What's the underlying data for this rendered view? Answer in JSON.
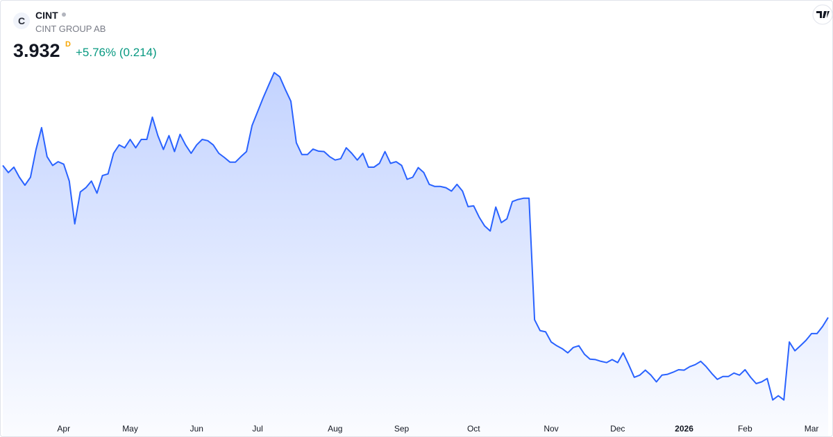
{
  "header": {
    "symbol": "CINT",
    "company": "CINT GROUP AB",
    "logo": "C",
    "price": 3.932,
    "interval": "D",
    "change": "+5.76% (0.214)"
  },
  "chart_data": {
    "type": "area",
    "color": "#2962ff",
    "categories": [
      null,
      null,
      null,
      null,
      null,
      null,
      null,
      null,
      null,
      null,
      null,
      "Apr",
      null,
      null,
      null,
      null,
      null,
      null,
      null,
      null,
      null,
      null,
      null,
      "May",
      null,
      null,
      null,
      null,
      null,
      null,
      null,
      null,
      null,
      null,
      null,
      "Jun",
      null,
      null,
      null,
      null,
      null,
      null,
      null,
      null,
      null,
      null,
      "Jul",
      null,
      null,
      null,
      null,
      null,
      null,
      null,
      null,
      null,
      null,
      null,
      null,
      null,
      "Aug",
      null,
      null,
      null,
      null,
      null,
      null,
      null,
      null,
      null,
      null,
      null,
      "Sep",
      null,
      null,
      null,
      null,
      null,
      null,
      null,
      null,
      null,
      null,
      null,
      null,
      "Oct",
      null,
      null,
      null,
      null,
      null,
      null,
      null,
      null,
      null,
      null,
      null,
      null,
      null,
      "Nov",
      null,
      null,
      null,
      null,
      null,
      null,
      null,
      null,
      null,
      null,
      null,
      "Dec",
      null,
      null,
      null,
      null,
      null,
      null,
      null,
      null,
      null,
      null,
      null,
      "2026",
      null,
      null,
      null,
      null,
      null,
      null,
      null,
      null,
      null,
      null,
      "Feb",
      null,
      null,
      null,
      null,
      null,
      null,
      null,
      null,
      null,
      null,
      null,
      "Mar",
      null,
      null,
      null
    ],
    "values": [
      7.55,
      7.38,
      7.51,
      7.27,
      7.08,
      7.27,
      7.93,
      8.45,
      7.76,
      7.55,
      7.64,
      7.58,
      7.18,
      6.16,
      6.92,
      7.02,
      7.18,
      6.89,
      7.31,
      7.35,
      7.84,
      8.04,
      7.97,
      8.17,
      7.97,
      8.17,
      8.17,
      8.7,
      8.26,
      7.93,
      8.26,
      7.88,
      8.29,
      8.04,
      7.84,
      8.04,
      8.17,
      8.14,
      8.04,
      7.84,
      7.74,
      7.63,
      7.63,
      7.76,
      7.88,
      8.5,
      8.83,
      9.16,
      9.46,
      9.76,
      9.66,
      9.36,
      9.08,
      8.09,
      7.81,
      7.81,
      7.94,
      7.89,
      7.88,
      7.76,
      7.68,
      7.71,
      7.97,
      7.84,
      7.68,
      7.84,
      7.51,
      7.51,
      7.6,
      7.88,
      7.6,
      7.64,
      7.55,
      7.22,
      7.27,
      7.5,
      7.38,
      7.1,
      7.05,
      7.05,
      7.02,
      6.94,
      7.1,
      6.94,
      6.57,
      6.59,
      6.32,
      6.11,
      5.99,
      6.56,
      6.19,
      6.28,
      6.69,
      6.74,
      6.77,
      6.77,
      3.88,
      3.62,
      3.59,
      3.35,
      3.26,
      3.19,
      3.09,
      3.22,
      3.26,
      3.06,
      2.94,
      2.93,
      2.89,
      2.86,
      2.93,
      2.86,
      3.09,
      2.81,
      2.51,
      2.56,
      2.68,
      2.56,
      2.4,
      2.56,
      2.58,
      2.63,
      2.69,
      2.68,
      2.76,
      2.81,
      2.89,
      2.76,
      2.6,
      2.46,
      2.53,
      2.53,
      2.61,
      2.56,
      2.69,
      2.51,
      2.36,
      2.4,
      2.48,
      1.97,
      2.07,
      1.97,
      3.35,
      3.14,
      3.26,
      3.39,
      3.55,
      3.55,
      3.72,
      3.932
    ],
    "ylim": [
      1.6,
      10.2
    ]
  }
}
